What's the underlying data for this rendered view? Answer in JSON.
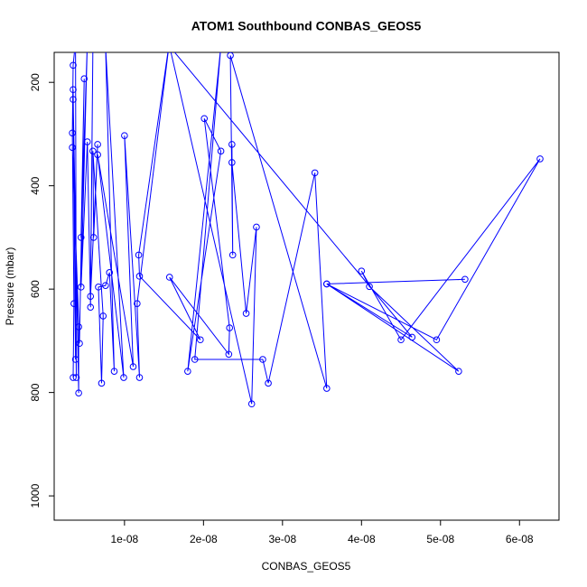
{
  "chart_data": {
    "type": "line",
    "title": "ATOM1 Southbound CONBAS_GEOS5",
    "x_label": "CONBAS_GEOS5",
    "y_label": "Pressure (mbar)",
    "xlim": [
      1.1e-09,
      6.5e-08
    ],
    "ylim": [
      1047,
      142
    ],
    "xticks": [
      {
        "value": 1e-08,
        "label": "1e-08"
      },
      {
        "value": 2e-08,
        "label": "2e-08"
      },
      {
        "value": 3e-08,
        "label": "3e-08"
      },
      {
        "value": 4e-08,
        "label": "4e-08"
      },
      {
        "value": 5e-08,
        "label": "5e-08"
      },
      {
        "value": 6e-08,
        "label": "6e-08"
      }
    ],
    "yticks": [
      200,
      400,
      600,
      800,
      1000
    ],
    "grid": false,
    "series": [
      {
        "color": "#0000ff",
        "marker": "open-circle",
        "x": [
          3.5e-09,
          3.6e-09,
          3.4e-09,
          3.5e-09,
          3.8e-09,
          3.9e-09,
          3.5e-09,
          3.8e-09,
          3.5e-09,
          4.2e-09,
          4.2e-09,
          3.4e-09,
          4.3e-09,
          4.9e-09,
          4.5e-09,
          5.3e-09,
          4.5e-09,
          5.3e-09,
          5.7e-09,
          6e-09,
          5.7e-09,
          6.6e-09,
          6.1e-09,
          6e-09,
          7.3e-09,
          7.1e-09,
          6.7e-09,
          7.6e-09,
          8.1e-09,
          8.7e-09,
          7.6e-09,
          9.9e-09,
          6.6e-09,
          1.11e-08,
          1e-08,
          1.19e-08,
          1.16e-08,
          1.57e-08,
          1.18e-08,
          1.19e-08,
          1.96e-08,
          1.57e-08,
          2.32e-08,
          2.33e-08,
          2.01e-08,
          2.22e-08,
          1.8e-08,
          2.22e-08,
          1.89e-08,
          2.75e-08,
          2.82e-08,
          3.41e-08,
          3.56e-08,
          2.34e-08,
          2.37e-08,
          2.36e-08,
          2.36e-08,
          2.54e-08,
          2.67e-08,
          2.61e-08,
          1.57e-08,
          4.64e-08,
          3.56e-08,
          5.23e-08,
          4.1e-08,
          4e-08,
          4.5e-08,
          6.26e-08,
          4.95e-08,
          3.56e-08,
          5.31e-08
        ],
        "values": [
          771,
          628,
          298,
          167,
          120,
          771,
          214,
          736,
          233,
          801,
          673,
          326,
          705,
          193,
          500,
          120,
          596,
          315,
          635,
          130,
          614,
          320,
          500,
          333,
          652,
          782,
          596,
          593,
          568,
          759,
          130,
          771,
          340,
          750,
          303,
          771,
          628,
          120,
          534,
          575,
          698,
          577,
          726,
          675,
          270,
          333,
          759,
          130,
          736,
          736,
          782,
          375,
          792,
          148,
          534,
          320,
          355,
          647,
          480,
          822,
          130,
          693,
          590,
          759,
          595,
          565,
          698,
          348,
          698,
          590,
          581
        ]
      }
    ]
  }
}
